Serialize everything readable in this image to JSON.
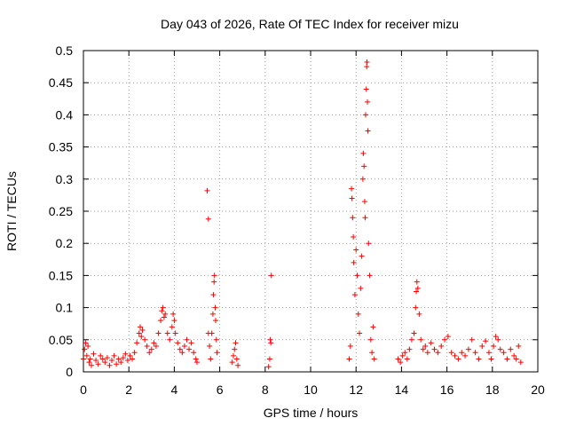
{
  "chart_data": {
    "type": "scatter",
    "title": "Day 043 of 2026, Rate Of TEC Index for receiver mizu",
    "xlabel": "GPS time / hours",
    "ylabel": "ROTI / TECUs",
    "xlim": [
      0,
      20
    ],
    "ylim": [
      0,
      0.5
    ],
    "x_ticks": [
      0,
      2,
      4,
      6,
      8,
      10,
      12,
      14,
      16,
      18,
      20
    ],
    "x_tick_labels": [
      "0",
      "2",
      "4",
      "6",
      "8",
      "10",
      "12",
      "14",
      "16",
      "18",
      "20"
    ],
    "y_ticks": [
      0,
      0.05,
      0.1,
      0.15,
      0.2,
      0.25,
      0.3,
      0.35,
      0.4,
      0.45,
      0.5
    ],
    "y_tick_labels": [
      "0",
      "0.05",
      "0.1",
      "0.15",
      "0.2",
      "0.25",
      "0.3",
      "0.35",
      "0.4",
      "0.45",
      "0.5"
    ],
    "grid": true,
    "marker": "+",
    "marker_color": "#ff0000",
    "series": [
      {
        "name": "ROTI",
        "points": [
          [
            0.0,
            0.02
          ],
          [
            0.05,
            0.035
          ],
          [
            0.1,
            0.045
          ],
          [
            0.15,
            0.025
          ],
          [
            0.2,
            0.04
          ],
          [
            0.25,
            0.015
          ],
          [
            0.3,
            0.02
          ],
          [
            0.35,
            0.01
          ],
          [
            0.45,
            0.028
          ],
          [
            0.55,
            0.018
          ],
          [
            0.65,
            0.012
          ],
          [
            0.75,
            0.025
          ],
          [
            0.85,
            0.02
          ],
          [
            0.95,
            0.015
          ],
          [
            1.05,
            0.022
          ],
          [
            1.15,
            0.01
          ],
          [
            1.25,
            0.018
          ],
          [
            1.35,
            0.025
          ],
          [
            1.45,
            0.012
          ],
          [
            1.55,
            0.02
          ],
          [
            1.65,
            0.015
          ],
          [
            1.75,
            0.022
          ],
          [
            1.85,
            0.028
          ],
          [
            1.95,
            0.018
          ],
          [
            2.05,
            0.025
          ],
          [
            2.15,
            0.02
          ],
          [
            2.25,
            0.03
          ],
          [
            2.35,
            0.045
          ],
          [
            2.45,
            0.06
          ],
          [
            2.5,
            0.07
          ],
          [
            2.55,
            0.055
          ],
          [
            2.6,
            0.065
          ],
          [
            2.7,
            0.05
          ],
          [
            2.8,
            0.04
          ],
          [
            2.9,
            0.03
          ],
          [
            3.0,
            0.035
          ],
          [
            3.1,
            0.045
          ],
          [
            3.2,
            0.04
          ],
          [
            3.3,
            0.06
          ],
          [
            3.4,
            0.08
          ],
          [
            3.45,
            0.095
          ],
          [
            3.5,
            0.1
          ],
          [
            3.55,
            0.085
          ],
          [
            3.6,
            0.09
          ],
          [
            3.7,
            0.06
          ],
          [
            3.8,
            0.05
          ],
          [
            3.9,
            0.07
          ],
          [
            3.95,
            0.09
          ],
          [
            4.0,
            0.08
          ],
          [
            4.05,
            0.06
          ],
          [
            4.15,
            0.045
          ],
          [
            4.25,
            0.035
          ],
          [
            4.35,
            0.03
          ],
          [
            4.45,
            0.04
          ],
          [
            4.55,
            0.05
          ],
          [
            4.65,
            0.035
          ],
          [
            4.75,
            0.045
          ],
          [
            4.85,
            0.03
          ],
          [
            4.95,
            0.02
          ],
          [
            5.0,
            0.015
          ],
          [
            5.45,
            0.282
          ],
          [
            5.5,
            0.238
          ],
          [
            5.5,
            0.06
          ],
          [
            5.55,
            0.04
          ],
          [
            5.6,
            0.02
          ],
          [
            5.65,
            0.06
          ],
          [
            5.7,
            0.09
          ],
          [
            5.72,
            0.12
          ],
          [
            5.75,
            0.14
          ],
          [
            5.77,
            0.15
          ],
          [
            5.8,
            0.1
          ],
          [
            5.82,
            0.08
          ],
          [
            5.85,
            0.05
          ],
          [
            5.88,
            0.03
          ],
          [
            6.55,
            0.015
          ],
          [
            6.6,
            0.025
          ],
          [
            6.65,
            0.035
          ],
          [
            6.7,
            0.045
          ],
          [
            6.75,
            0.02
          ],
          [
            6.8,
            0.01
          ],
          [
            8.15,
            0.008
          ],
          [
            8.2,
            0.02
          ],
          [
            8.22,
            0.05
          ],
          [
            8.25,
            0.045
          ],
          [
            8.27,
            0.15
          ],
          [
            11.7,
            0.02
          ],
          [
            11.75,
            0.04
          ],
          [
            11.8,
            0.285
          ],
          [
            11.82,
            0.27
          ],
          [
            11.85,
            0.24
          ],
          [
            11.88,
            0.21
          ],
          [
            11.9,
            0.17
          ],
          [
            11.95,
            0.12
          ],
          [
            12.0,
            0.19
          ],
          [
            12.05,
            0.15
          ],
          [
            12.1,
            0.09
          ],
          [
            12.15,
            0.06
          ],
          [
            12.2,
            0.13
          ],
          [
            12.25,
            0.18
          ],
          [
            12.3,
            0.3
          ],
          [
            12.32,
            0.34
          ],
          [
            12.35,
            0.32
          ],
          [
            12.38,
            0.265
          ],
          [
            12.4,
            0.24
          ],
          [
            12.42,
            0.4
          ],
          [
            12.45,
            0.44
          ],
          [
            12.47,
            0.475
          ],
          [
            12.48,
            0.482
          ],
          [
            12.5,
            0.42
          ],
          [
            12.52,
            0.375
          ],
          [
            12.55,
            0.2
          ],
          [
            12.6,
            0.15
          ],
          [
            12.65,
            0.05
          ],
          [
            12.7,
            0.03
          ],
          [
            12.75,
            0.07
          ],
          [
            12.8,
            0.02
          ],
          [
            13.85,
            0.02
          ],
          [
            13.95,
            0.015
          ],
          [
            14.05,
            0.025
          ],
          [
            14.15,
            0.03
          ],
          [
            14.25,
            0.02
          ],
          [
            14.35,
            0.035
          ],
          [
            14.45,
            0.05
          ],
          [
            14.55,
            0.06
          ],
          [
            14.62,
            0.1
          ],
          [
            14.65,
            0.125
          ],
          [
            14.68,
            0.14
          ],
          [
            14.72,
            0.13
          ],
          [
            14.78,
            0.09
          ],
          [
            14.85,
            0.05
          ],
          [
            14.95,
            0.035
          ],
          [
            15.05,
            0.04
          ],
          [
            15.15,
            0.03
          ],
          [
            15.3,
            0.045
          ],
          [
            15.45,
            0.035
          ],
          [
            15.6,
            0.03
          ],
          [
            15.75,
            0.04
          ],
          [
            15.9,
            0.05
          ],
          [
            16.05,
            0.055
          ],
          [
            16.2,
            0.03
          ],
          [
            16.35,
            0.025
          ],
          [
            16.5,
            0.02
          ],
          [
            16.65,
            0.03
          ],
          [
            16.8,
            0.025
          ],
          [
            16.95,
            0.035
          ],
          [
            17.1,
            0.05
          ],
          [
            17.25,
            0.03
          ],
          [
            17.4,
            0.02
          ],
          [
            17.55,
            0.04
          ],
          [
            17.7,
            0.048
          ],
          [
            17.85,
            0.03
          ],
          [
            17.95,
            0.02
          ],
          [
            18.05,
            0.04
          ],
          [
            18.15,
            0.055
          ],
          [
            18.25,
            0.05
          ],
          [
            18.35,
            0.035
          ],
          [
            18.5,
            0.03
          ],
          [
            18.65,
            0.02
          ],
          [
            18.8,
            0.035
          ],
          [
            18.95,
            0.025
          ],
          [
            19.05,
            0.02
          ],
          [
            19.15,
            0.04
          ],
          [
            19.25,
            0.015
          ]
        ]
      }
    ]
  }
}
